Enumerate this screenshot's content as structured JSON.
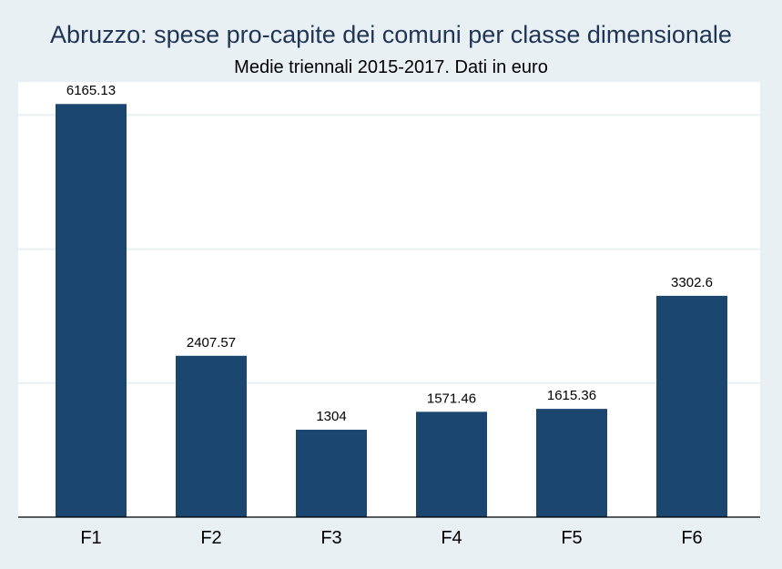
{
  "chart_data": {
    "type": "bar",
    "title": "Abruzzo: spese pro-capite dei comuni per classe dimensionale",
    "subtitle": "Medie triennali 2015-2017. Dati in euro",
    "categories": [
      "F1",
      "F2",
      "F3",
      "F4",
      "F5",
      "F6"
    ],
    "values": [
      6165.13,
      2407.57,
      1304,
      1571.46,
      1615.36,
      3302.6
    ],
    "value_labels": [
      "6165.13",
      "2407.57",
      "1304",
      "1571.46",
      "1615.36",
      "3302.6"
    ],
    "xlabel": "",
    "ylabel": "",
    "ylim": [
      0,
      6000
    ],
    "gridlines": [
      2000,
      4000,
      6000
    ],
    "y_tick_labels_visible": false,
    "grid": true,
    "legend": "none"
  },
  "colors": {
    "bar": "#1b4670",
    "plot_background": "#ffffff",
    "page_background": "#e9f0f3",
    "gridline": "#e9f0f3",
    "title": "#1f3556",
    "axis": "#000000"
  }
}
